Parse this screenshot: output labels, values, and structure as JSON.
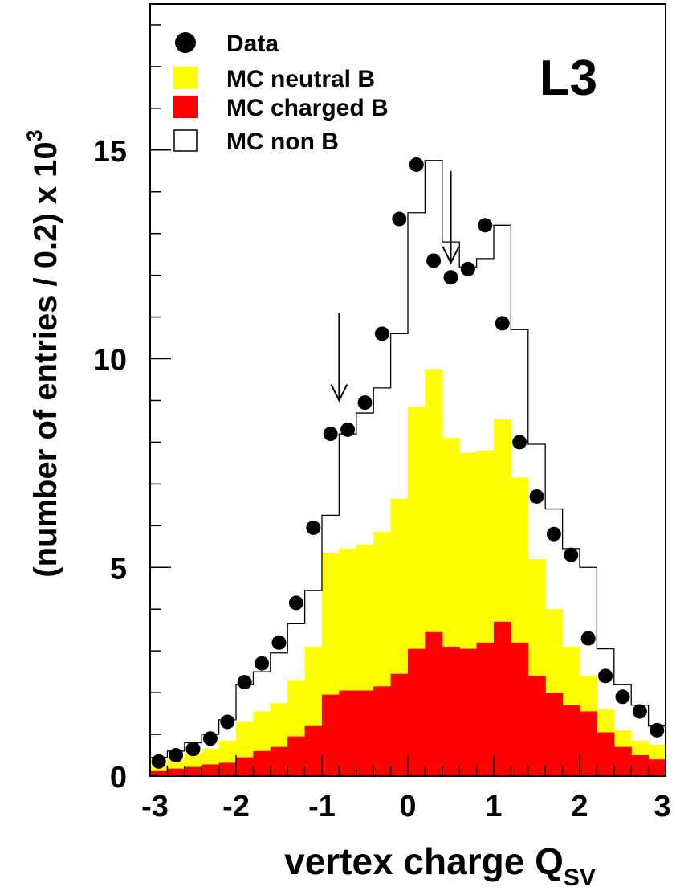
{
  "chart_data": {
    "type": "histogram",
    "title": "",
    "experiment_label": "L3",
    "xlabel_main": "vertex charge Q",
    "xlabel_sub": "SV",
    "ylabel_main": "(number of entries / 0.2) x 10",
    "ylabel_sup": "3",
    "xlim": [
      -3,
      3
    ],
    "ylim": [
      0,
      18.5
    ],
    "x_ticks": [
      "-3",
      "-2",
      "-1",
      "0",
      "1",
      "2",
      "3"
    ],
    "y_ticks": [
      "0",
      "5",
      "10",
      "15"
    ],
    "bin_edges": [
      -3.0,
      -2.8,
      -2.6,
      -2.4,
      -2.2,
      -2.0,
      -1.8,
      -1.6,
      -1.4,
      -1.2,
      -1.0,
      -0.8,
      -0.6,
      -0.4,
      -0.2,
      0.0,
      0.2,
      0.4,
      0.6,
      0.8,
      1.0,
      1.2,
      1.4,
      1.6,
      1.8,
      2.0,
      2.2,
      2.4,
      2.6,
      2.8,
      3.0
    ],
    "legend": [
      {
        "label": "Data",
        "style": "marker",
        "color": "#000000"
      },
      {
        "label": "MC neutral B",
        "style": "fill",
        "color": "#ffff00"
      },
      {
        "label": "MC charged B",
        "style": "fill",
        "color": "#ff0000"
      },
      {
        "label": "MC non B",
        "style": "outline",
        "color": "#000000"
      }
    ],
    "series": [
      {
        "name": "MC charged B",
        "color": "#ff0000",
        "values": [
          0.12,
          0.18,
          0.22,
          0.28,
          0.32,
          0.45,
          0.6,
          0.7,
          0.95,
          1.2,
          1.95,
          2.05,
          2.05,
          2.15,
          2.45,
          3.05,
          3.45,
          3.1,
          3.05,
          3.2,
          3.7,
          3.2,
          2.4,
          2.0,
          1.7,
          1.55,
          1.05,
          0.7,
          0.5,
          0.4
        ]
      },
      {
        "name": "MC neutral B",
        "color": "#ffff00",
        "values": [
          0.3,
          0.4,
          0.55,
          0.65,
          0.85,
          1.3,
          1.55,
          1.75,
          2.3,
          3.1,
          5.35,
          5.45,
          5.55,
          5.85,
          6.65,
          8.85,
          9.75,
          8.1,
          7.75,
          7.8,
          8.55,
          7.15,
          5.2,
          4.0,
          3.1,
          2.4,
          1.6,
          1.1,
          0.85,
          0.75
        ]
      },
      {
        "name": "MC non B",
        "color": "#000000",
        "values": [
          0.45,
          0.6,
          0.8,
          1.0,
          1.35,
          2.2,
          2.5,
          2.95,
          3.65,
          4.45,
          6.25,
          8.2,
          8.7,
          9.3,
          10.6,
          13.5,
          14.75,
          12.8,
          12.2,
          12.4,
          13.2,
          10.7,
          7.95,
          6.4,
          5.45,
          5.0,
          3.05,
          2.2,
          1.7,
          1.2
        ]
      },
      {
        "name": "Data",
        "color": "#000000",
        "values": [
          0.35,
          0.5,
          0.65,
          0.9,
          1.3,
          2.25,
          2.7,
          3.2,
          4.15,
          5.95,
          8.2,
          8.3,
          8.95,
          10.6,
          13.35,
          14.65,
          12.35,
          11.95,
          12.15,
          13.2,
          10.85,
          8.0,
          6.7,
          5.8,
          5.3,
          3.3,
          2.4,
          1.9,
          1.55,
          1.1
        ]
      }
    ],
    "annotations": [
      {
        "type": "arrow",
        "direction": "down",
        "x": -0.8,
        "y_from": 11.1,
        "y_to": 9.0
      },
      {
        "type": "arrow",
        "direction": "down",
        "x": 0.5,
        "y_from": 14.5,
        "y_to": 12.3
      }
    ]
  }
}
